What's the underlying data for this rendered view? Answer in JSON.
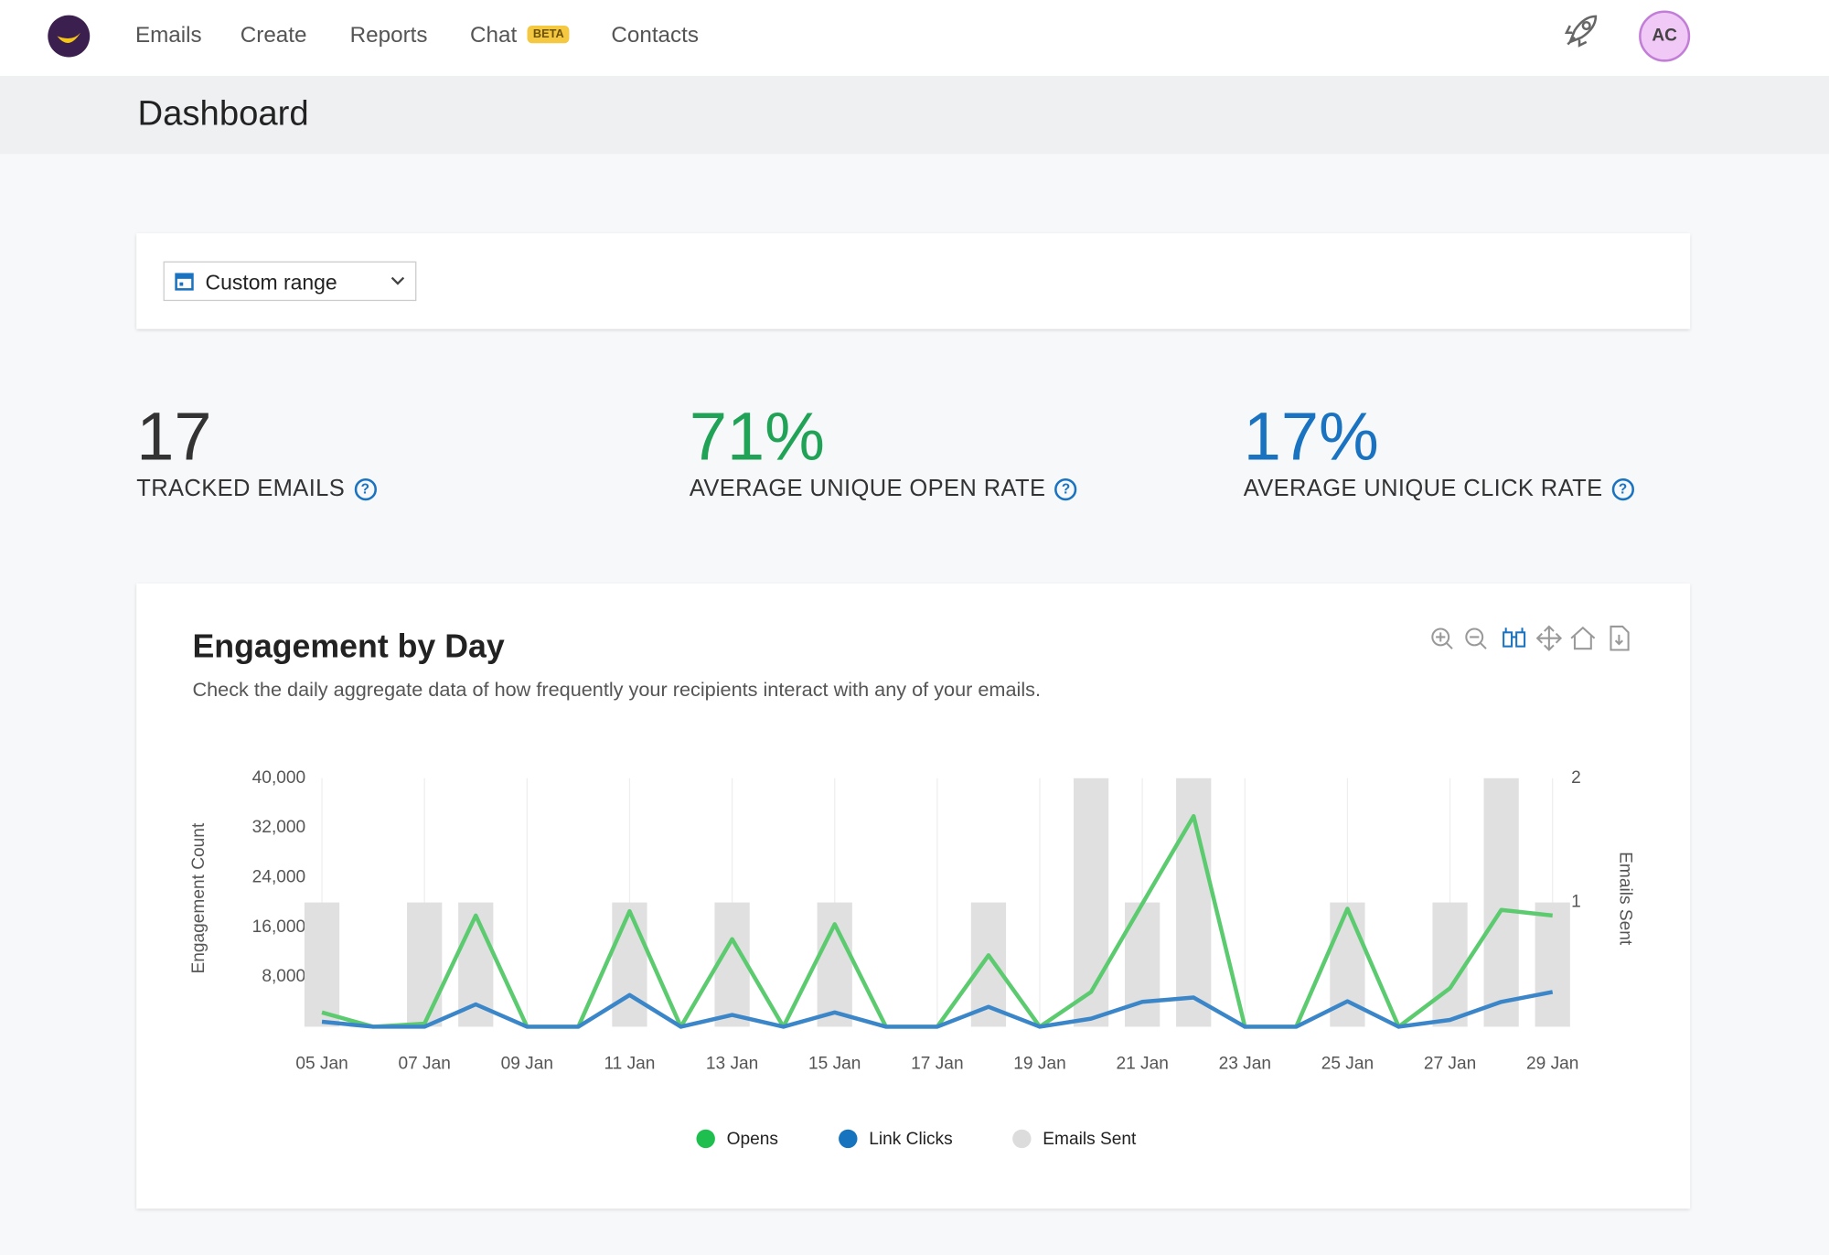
{
  "nav": {
    "items": [
      "Emails",
      "Create",
      "Reports",
      "Chat",
      "Contacts"
    ],
    "badge": "BETA",
    "avatar": "AC"
  },
  "page_title": "Dashboard",
  "filter": "Custom range",
  "stats": [
    {
      "value": "17",
      "label": "TRACKED EMAILS"
    },
    {
      "value": "71%",
      "label": "AVERAGE UNIQUE OPEN RATE"
    },
    {
      "value": "17%",
      "label": "AVERAGE UNIQUE CLICK RATE"
    }
  ],
  "chart_data": {
    "type": "line",
    "title": "Engagement by Day",
    "subtitle": "Check the daily aggregate data of how frequently your recipients interact with any of your emails.",
    "y_label": "Engagement Count",
    "y2_label": "Emails Sent",
    "categories": [
      "05 Jan",
      null,
      "07 Jan",
      null,
      "09 Jan",
      null,
      "11 Jan",
      null,
      "13 Jan",
      null,
      "15 Jan",
      null,
      "17 Jan",
      null,
      "19 Jan",
      null,
      "21 Jan",
      null,
      "23 Jan",
      null,
      "25 Jan",
      null,
      "27 Jan",
      null,
      "29 Jan"
    ],
    "series": [
      {
        "name": "Opens",
        "color": "#5ccb6f",
        "legend_color": "#1fbf4f",
        "values": [
          2300,
          0,
          500,
          17900,
          0,
          0,
          18600,
          0,
          14100,
          0,
          16500,
          0,
          0,
          11500,
          0,
          5600,
          19800,
          33900,
          0,
          0,
          19000,
          0,
          6200,
          18800,
          17900
        ]
      },
      {
        "name": "Link Clicks",
        "color": "#3a86c8",
        "legend_color": "#1673bd",
        "values": [
          800,
          0,
          0,
          3600,
          0,
          0,
          5100,
          0,
          1900,
          0,
          2300,
          0,
          0,
          3200,
          0,
          1300,
          4000,
          4700,
          0,
          0,
          4100,
          0,
          1100,
          4000,
          5600
        ]
      },
      {
        "name": "Emails Sent",
        "type": "bar",
        "axis": "y2",
        "color": "#e0e0e0",
        "legend_color": "#dcdcdc",
        "values": [
          1,
          0,
          1,
          1,
          0,
          0,
          1,
          0,
          1,
          0,
          1,
          0,
          0,
          1,
          0,
          2,
          1,
          2,
          0,
          0,
          1,
          0,
          1,
          2,
          1
        ]
      }
    ],
    "ylim": [
      0,
      40000
    ],
    "yticks": [
      {
        "value": 8000,
        "label": "8,000"
      },
      {
        "value": 16000,
        "label": "16,000"
      },
      {
        "value": 24000,
        "label": "24,000"
      },
      {
        "value": 32000,
        "label": "32,000"
      },
      {
        "value": 40000,
        "label": "40,000"
      }
    ],
    "y2lim": [
      0,
      2
    ],
    "y2ticks": [
      1,
      2
    ],
    "grid": true
  }
}
